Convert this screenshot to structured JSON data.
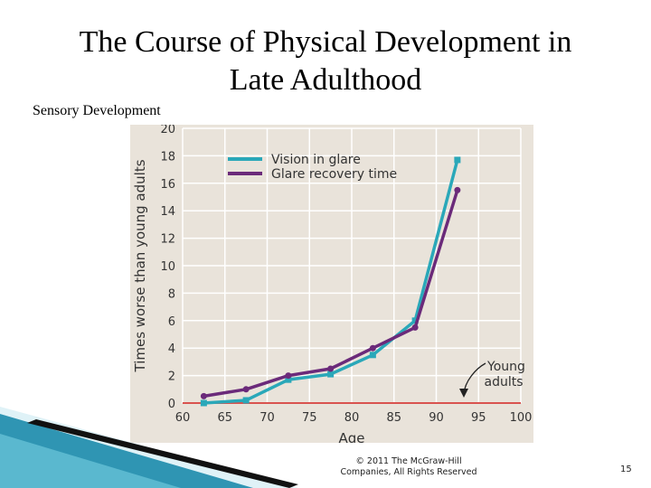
{
  "slide": {
    "title_line1": "The Course of Physical Development in",
    "title_line2": "Late Adulthood",
    "subtitle": "Sensory Development",
    "copyright_line1": "© 2011 The McGraw-Hill",
    "copyright_line2": "Companies, All Rights Reserved",
    "page_number": "15"
  },
  "colors": {
    "vision": "#2aa8b9",
    "recovery": "#6b2a7a",
    "baseline": "#d9534f",
    "plot_bg": "#e9e3da",
    "grid": "#ffffff"
  },
  "chart_data": {
    "type": "line",
    "xlabel": "Age",
    "ylabel": "Times worse than young adults",
    "xlim": [
      60,
      100
    ],
    "ylim": [
      0,
      20
    ],
    "x_ticks": [
      60,
      65,
      70,
      75,
      80,
      85,
      90,
      95,
      100
    ],
    "y_ticks": [
      0,
      2,
      4,
      6,
      8,
      10,
      12,
      14,
      16,
      18,
      20
    ],
    "grid": true,
    "legend_position": "top-left",
    "series": [
      {
        "name": "Vision in glare",
        "color_key": "vision",
        "marker": "square",
        "x": [
          62.5,
          67.5,
          72.5,
          77.5,
          82.5,
          87.5,
          92.5
        ],
        "y": [
          0,
          0.2,
          1.7,
          2.1,
          3.5,
          6.0,
          17.7
        ]
      },
      {
        "name": "Glare recovery time",
        "color_key": "recovery",
        "marker": "circle",
        "x": [
          62.5,
          67.5,
          72.5,
          77.5,
          82.5,
          87.5,
          92.5
        ],
        "y": [
          0.5,
          1.0,
          2.0,
          2.5,
          4.0,
          5.5,
          15.5
        ]
      }
    ],
    "baseline": {
      "value": 0,
      "label_line1": "Young",
      "label_line2": "adults"
    }
  }
}
